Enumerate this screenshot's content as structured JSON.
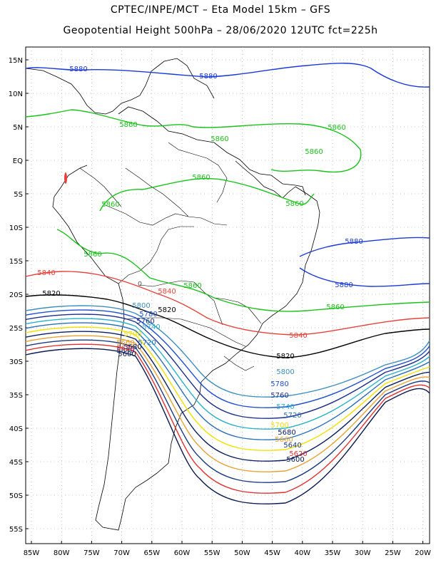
{
  "title_line1": "CPTEC/INPE/MCT –  Eta Model 15km – GFS",
  "title_line2": "Geopotential Height 500hPa – 28/06/2020 12UTC fct=225h",
  "lat_labels": [
    "15N",
    "10N",
    "5N",
    "EQ",
    "5S",
    "10S",
    "15S",
    "20S",
    "25S",
    "30S",
    "35S",
    "40S",
    "45S",
    "50S",
    "55S"
  ],
  "lon_labels": [
    "85W",
    "80W",
    "75W",
    "70W",
    "65W",
    "60W",
    "55W",
    "50W",
    "45W",
    "40W",
    "35W",
    "30W",
    "25W",
    "20W"
  ],
  "contours": [
    {
      "value": "5880",
      "color": "#1a3ad8"
    },
    {
      "value": "5860",
      "color": "#19c319"
    },
    {
      "value": "5840",
      "color": "#e8413a"
    },
    {
      "value": "5820",
      "color": "#000000"
    },
    {
      "value": "5800",
      "color": "#3d8fbd"
    },
    {
      "value": "5780",
      "color": "#1f4fd0"
    },
    {
      "value": "5760",
      "color": "#1c2f8c"
    },
    {
      "value": "5740",
      "color": "#2ab0c8"
    },
    {
      "value": "5720",
      "color": "#2a6fb8"
    },
    {
      "value": "5700",
      "color": "#f2e000"
    },
    {
      "value": "5680",
      "color": "#0b2060"
    },
    {
      "value": "5660",
      "color": "#e8a030"
    },
    {
      "value": "5640",
      "color": "#1a3a80"
    },
    {
      "value": "5620",
      "color": "#e03030"
    },
    {
      "value": "5600",
      "color": "#0a1a50"
    }
  ]
}
